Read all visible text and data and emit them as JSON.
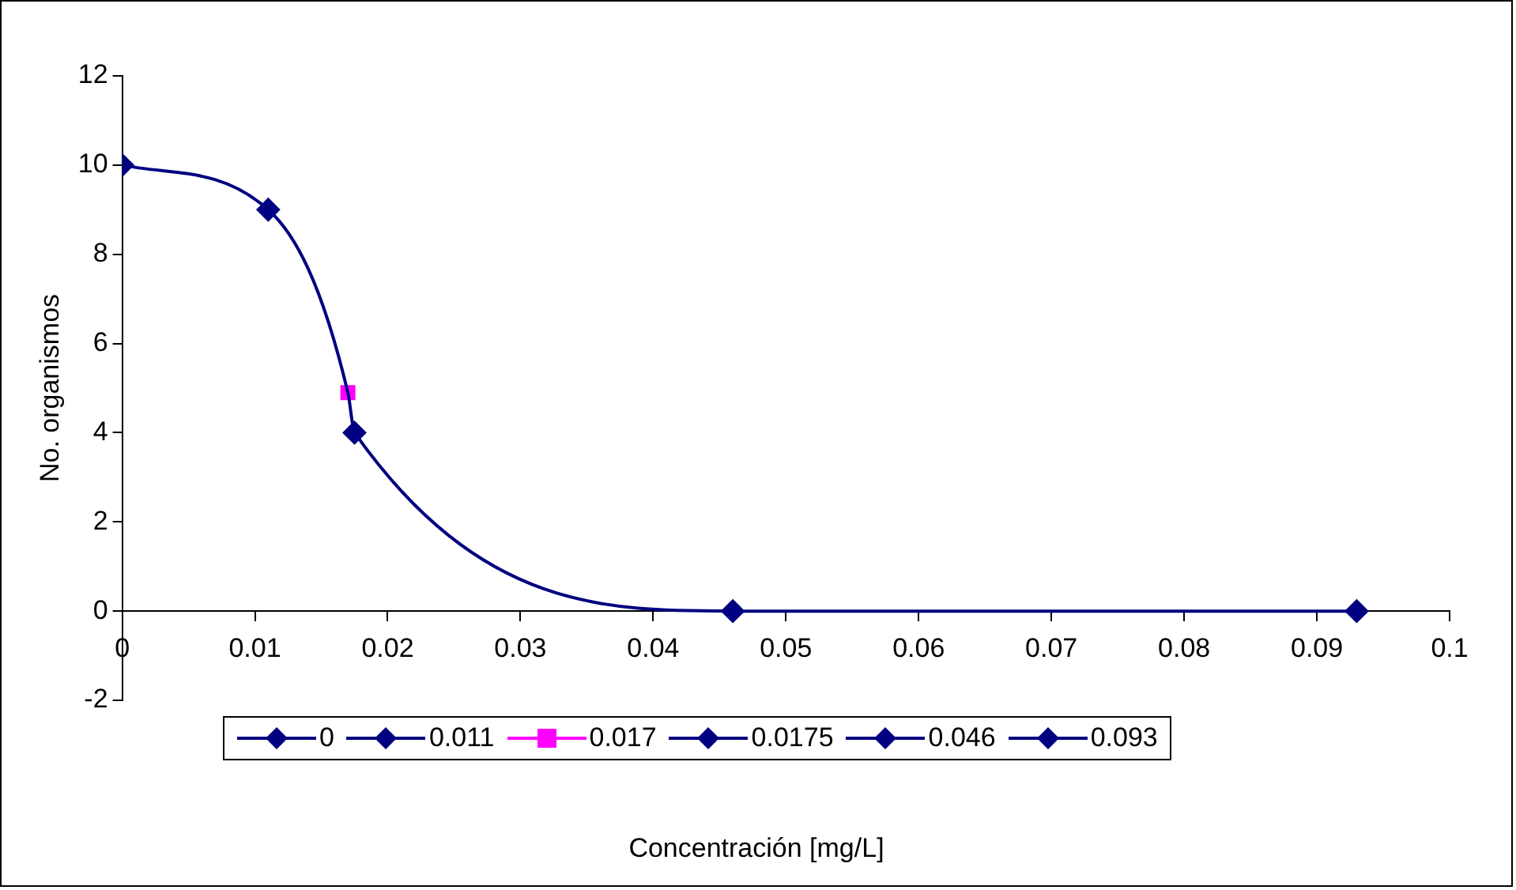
{
  "chart_data": {
    "type": "line",
    "xlabel": "Concentración [mg/L]",
    "ylabel": "No. organismos",
    "xlim": [
      0,
      0.1
    ],
    "xticks": [
      0,
      0.01,
      0.02,
      0.03,
      0.04,
      0.05,
      0.06,
      0.07,
      0.08,
      0.09,
      0.1
    ],
    "ylim": [
      -2,
      12
    ],
    "yticks": [
      -2,
      0,
      2,
      4,
      6,
      8,
      10,
      12
    ],
    "grid": false,
    "legend": "bottom",
    "series": [
      {
        "type": "line",
        "color": "#000080",
        "marker": "none",
        "x": [
          0,
          0.011,
          0.017,
          0.0175,
          0.046,
          0.093
        ],
        "values": [
          10,
          9,
          4.9,
          4,
          0,
          0
        ]
      },
      {
        "type": "scatter",
        "name": "0",
        "color": "#000080",
        "marker": "diamond",
        "x": [
          0
        ],
        "values": [
          10
        ]
      },
      {
        "type": "scatter",
        "name": "0.011",
        "color": "#000080",
        "marker": "diamond",
        "x": [
          0.011
        ],
        "values": [
          9
        ]
      },
      {
        "type": "scatter",
        "name": "0.017",
        "color": "#ff00ff",
        "marker": "square",
        "x": [
          0.017
        ],
        "values": [
          4.9
        ]
      },
      {
        "type": "scatter",
        "name": "0.0175",
        "color": "#000080",
        "marker": "diamond",
        "x": [
          0.0175
        ],
        "values": [
          4
        ]
      },
      {
        "type": "scatter",
        "name": "0.046",
        "color": "#000080",
        "marker": "diamond",
        "x": [
          0.046
        ],
        "values": [
          0
        ]
      },
      {
        "type": "scatter",
        "name": "0.093",
        "color": "#000080",
        "marker": "diamond",
        "x": [
          0.093
        ],
        "values": [
          0
        ]
      }
    ]
  }
}
